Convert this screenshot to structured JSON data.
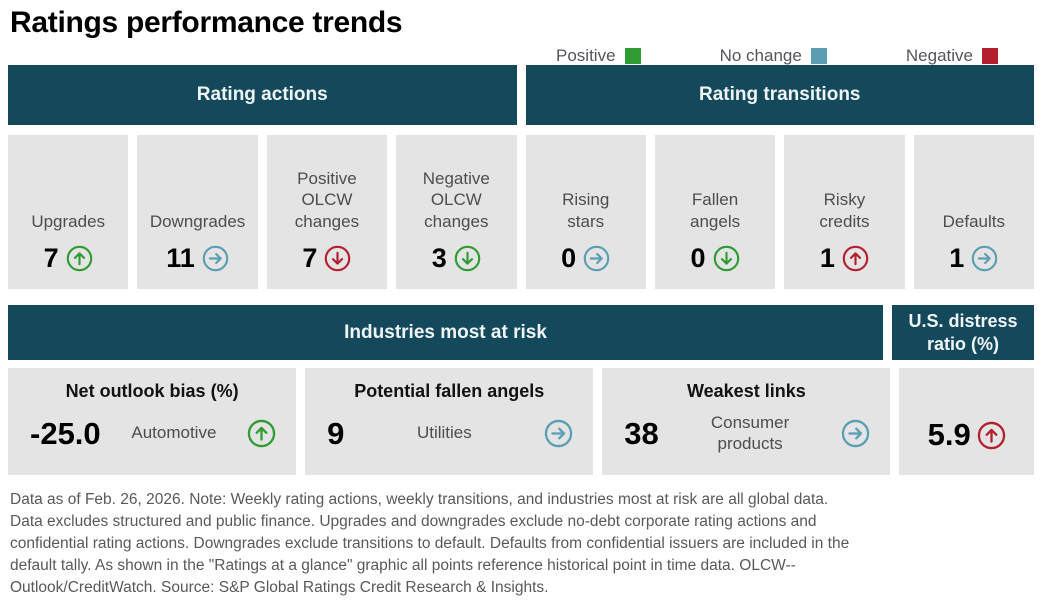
{
  "title": "Ratings performance trends",
  "colors": {
    "positive": "#2E9B33",
    "no_change": "#5B9EB3",
    "negative": "#B41F2E",
    "header_bg": "#14495C",
    "card_bg": "#E4E4E4"
  },
  "legend": {
    "items": [
      {
        "label": "Positive",
        "color": "#2E9B33"
      },
      {
        "label": "No change",
        "color": "#5B9EB3"
      },
      {
        "label": "Negative",
        "color": "#B41F2E"
      }
    ]
  },
  "sections": {
    "rating_actions": {
      "header": "Rating actions",
      "cards": [
        {
          "label": "Upgrades",
          "value": "7",
          "icon": {
            "dir": "up",
            "sentiment": "positive"
          }
        },
        {
          "label": "Downgrades",
          "value": "11",
          "icon": {
            "dir": "right",
            "sentiment": "no_change"
          }
        },
        {
          "label": "Positive OLCW changes",
          "value": "7",
          "icon": {
            "dir": "down",
            "sentiment": "negative"
          }
        },
        {
          "label": "Negative OLCW changes",
          "value": "3",
          "icon": {
            "dir": "down",
            "sentiment": "positive"
          }
        }
      ]
    },
    "rating_transitions": {
      "header": "Rating transitions",
      "cards": [
        {
          "label": "Rising stars",
          "value": "0",
          "icon": {
            "dir": "right",
            "sentiment": "no_change"
          }
        },
        {
          "label": "Fallen angels",
          "value": "0",
          "icon": {
            "dir": "down",
            "sentiment": "positive"
          }
        },
        {
          "label": "Risky credits",
          "value": "1",
          "icon": {
            "dir": "up",
            "sentiment": "negative"
          }
        },
        {
          "label": "Defaults",
          "value": "1",
          "icon": {
            "dir": "right",
            "sentiment": "no_change"
          }
        }
      ]
    },
    "industries_most_at_risk": {
      "header": "Industries most at risk",
      "cards": [
        {
          "title": "Net outlook bias (%)",
          "value": "-25.0",
          "industry": "Automotive",
          "icon": {
            "dir": "up",
            "sentiment": "positive"
          }
        },
        {
          "title": "Potential fallen angels",
          "value": "9",
          "industry": "Utilities",
          "icon": {
            "dir": "right",
            "sentiment": "no_change"
          }
        },
        {
          "title": "Weakest links",
          "value": "38",
          "industry": "Consumer products",
          "icon": {
            "dir": "right",
            "sentiment": "no_change"
          }
        }
      ]
    },
    "us_distress_ratio": {
      "header": "U.S. distress ratio (%)",
      "value": "5.9",
      "icon": {
        "dir": "up",
        "sentiment": "negative"
      }
    }
  },
  "footnote_lines": [
    "Data as of Feb. 26, 2026. Note: Weekly rating actions, weekly transitions, and industries most at risk are all global data.",
    "Data excludes structured and public finance. Upgrades and downgrades exclude no-debt corporate rating actions and",
    "confidential rating actions. Downgrades exclude transitions to default. Defaults from confidential issuers are included in the",
    "default tally. As shown in the \"Ratings at a glance\" graphic all points reference historical point in time data. OLCW--",
    "Outlook/CreditWatch. Source: S&P Global Ratings Credit Research & Insights."
  ],
  "chart_data": {
    "type": "table",
    "title": "Ratings performance trends",
    "legend": [
      "Positive",
      "No change",
      "Negative"
    ],
    "columns": [
      "metric",
      "value",
      "trend_direction",
      "sentiment",
      "industry"
    ],
    "rows": [
      [
        "Upgrades",
        7,
        "up",
        "positive",
        null
      ],
      [
        "Downgrades",
        11,
        "right",
        "no change",
        null
      ],
      [
        "Positive OLCW changes",
        7,
        "down",
        "negative",
        null
      ],
      [
        "Negative OLCW changes",
        3,
        "down",
        "positive",
        null
      ],
      [
        "Rising stars",
        0,
        "right",
        "no change",
        null
      ],
      [
        "Fallen angels",
        0,
        "down",
        "positive",
        null
      ],
      [
        "Risky credits",
        1,
        "up",
        "negative",
        null
      ],
      [
        "Defaults",
        1,
        "right",
        "no change",
        null
      ],
      [
        "Net outlook bias (%)",
        -25.0,
        "up",
        "positive",
        "Automotive"
      ],
      [
        "Potential fallen angels",
        9,
        "right",
        "no change",
        "Utilities"
      ],
      [
        "Weakest links",
        38,
        "right",
        "no change",
        "Consumer products"
      ],
      [
        "U.S. distress ratio (%)",
        5.9,
        "up",
        "negative",
        null
      ]
    ]
  }
}
